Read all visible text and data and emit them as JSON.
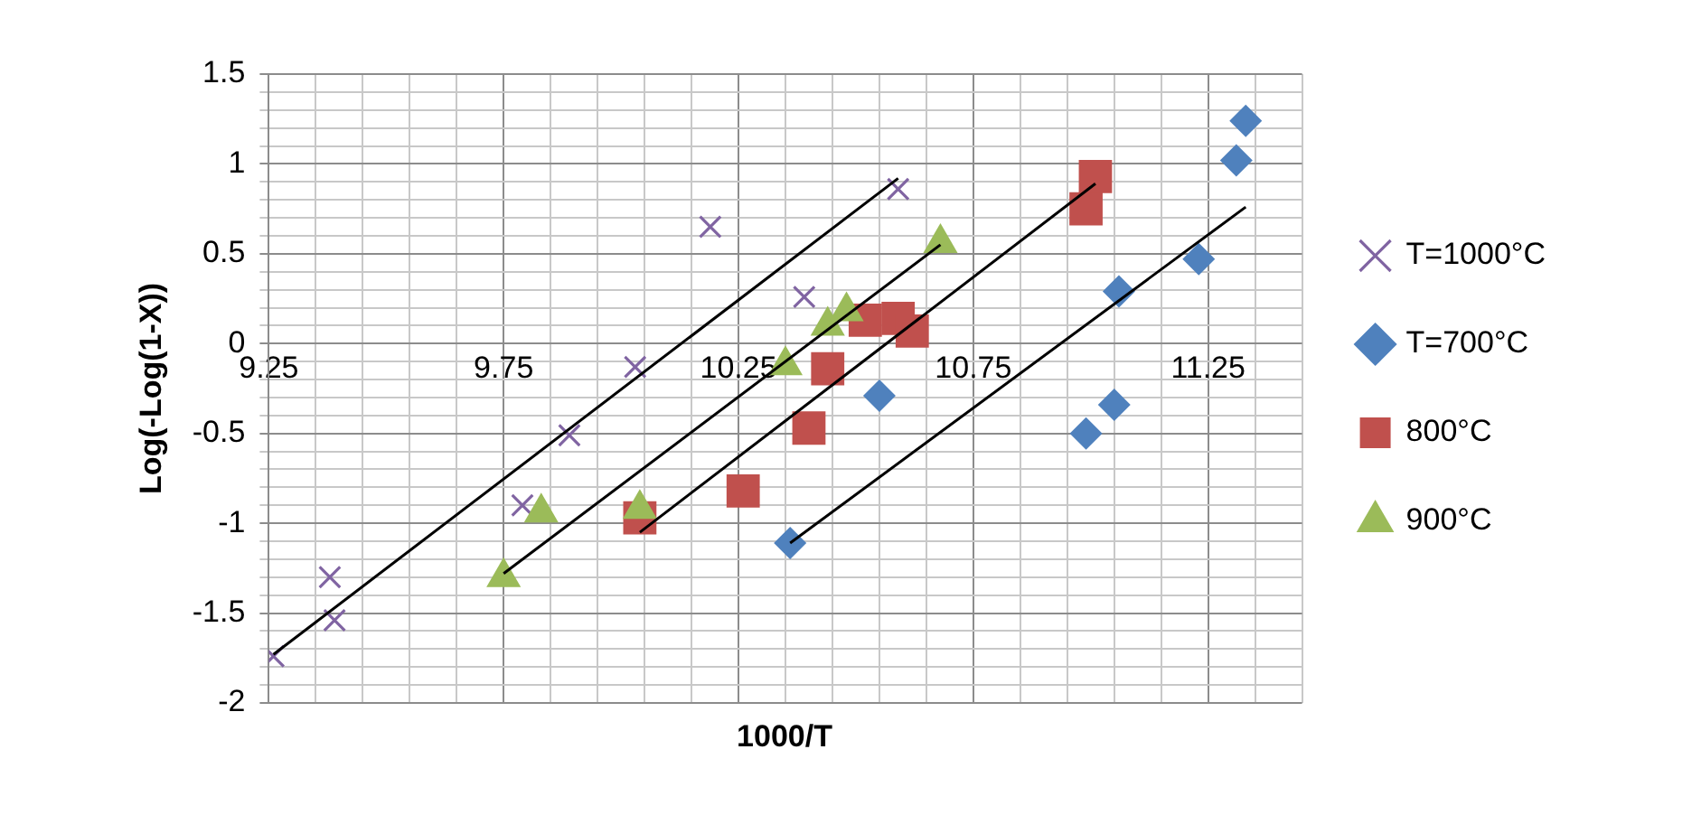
{
  "chart_data": {
    "type": "scatter",
    "xlabel": "1000/T",
    "ylabel": "Log(-Log(1-X))",
    "xlim": [
      9.25,
      11.45
    ],
    "ylim": [
      -2,
      1.5
    ],
    "xticks": [
      9.25,
      {
        "value": 9.35,
        "label": null
      },
      {
        "value": 9.45,
        "label": null
      },
      {
        "value": 9.55,
        "label": null
      },
      {
        "value": 9.65,
        "label": null
      },
      9.75,
      {
        "value": 9.85,
        "label": null
      },
      {
        "value": 9.95,
        "label": null
      },
      {
        "value": 10.05,
        "label": null
      },
      {
        "value": 10.15,
        "label": null
      },
      10.25,
      {
        "value": 10.35,
        "label": null
      },
      {
        "value": 10.45,
        "label": null
      },
      {
        "value": 10.55,
        "label": null
      },
      {
        "value": 10.65,
        "label": null
      },
      10.75,
      {
        "value": 10.85,
        "label": null
      },
      {
        "value": 10.95,
        "label": null
      },
      {
        "value": 11.05,
        "label": null
      },
      {
        "value": 11.15,
        "label": null
      },
      11.25,
      {
        "value": 11.35,
        "label": null
      },
      {
        "value": 11.45,
        "label": null
      }
    ],
    "yticks": [
      -2,
      {
        "value": -1.9,
        "label": null
      },
      {
        "value": -1.8,
        "label": null
      },
      {
        "value": -1.7,
        "label": null
      },
      {
        "value": -1.6,
        "label": null
      },
      -1.5,
      {
        "value": -1.4,
        "label": null
      },
      {
        "value": -1.3,
        "label": null
      },
      {
        "value": -1.2,
        "label": null
      },
      {
        "value": -1.1,
        "label": null
      },
      -1,
      {
        "value": -0.9,
        "label": null
      },
      {
        "value": -0.8,
        "label": null
      },
      {
        "value": -0.7,
        "label": null
      },
      {
        "value": -0.6,
        "label": null
      },
      -0.5,
      {
        "value": -0.4,
        "label": null
      },
      {
        "value": -0.3,
        "label": null
      },
      {
        "value": -0.2,
        "label": null
      },
      {
        "value": -0.1,
        "label": null
      },
      0,
      {
        "value": 0.1,
        "label": null
      },
      {
        "value": 0.2,
        "label": null
      },
      {
        "value": 0.3,
        "label": null
      },
      {
        "value": 0.4,
        "label": null
      },
      0.5,
      {
        "value": 0.6,
        "label": null
      },
      {
        "value": 0.7,
        "label": null
      },
      {
        "value": 0.8,
        "label": null
      },
      {
        "value": 0.9,
        "label": null
      },
      1,
      {
        "value": 1.1,
        "label": null
      },
      {
        "value": 1.2,
        "label": null
      },
      {
        "value": 1.3,
        "label": null
      },
      {
        "value": 1.4,
        "label": null
      },
      1.5
    ],
    "grid": true,
    "legend": "right",
    "series": [
      {
        "name": "T=1000°C",
        "color": "#8064a2",
        "marker": "cross",
        "x": [
          9.26,
          9.38,
          9.39,
          9.79,
          9.89,
          10.03,
          10.19,
          10.39,
          10.59
        ],
        "values": [
          -1.74,
          -1.3,
          -1.54,
          -0.9,
          -0.51,
          -0.13,
          0.65,
          0.26,
          0.86
        ]
      },
      {
        "name": "T=700°C",
        "color": "#4f81bd",
        "marker": "diamond",
        "x": [
          10.36,
          10.55,
          10.99,
          11.05,
          11.06,
          11.23,
          11.31,
          11.33
        ],
        "values": [
          -1.11,
          -0.29,
          -0.5,
          -0.34,
          0.29,
          0.47,
          1.02,
          1.24
        ]
      },
      {
        "name": "800°C",
        "color": "#c0504d",
        "marker": "square",
        "x": [
          10.04,
          10.26,
          10.4,
          10.44,
          10.52,
          10.59,
          10.62,
          10.99,
          11.01
        ],
        "values": [
          -0.97,
          -0.82,
          -0.47,
          -0.14,
          0.13,
          0.14,
          0.07,
          0.75,
          0.93
        ]
      },
      {
        "name": "900°C",
        "color": "#9bbb59",
        "marker": "triangle",
        "x": [
          9.75,
          9.83,
          10.04,
          10.35,
          10.44,
          10.48,
          10.68
        ],
        "values": [
          -1.3,
          -0.94,
          -0.92,
          -0.12,
          0.1,
          0.18,
          0.56
        ]
      },
      {
        "type": "line",
        "color": "#000000",
        "marker": "none",
        "x": [
          9.26,
          10.59
        ],
        "values": [
          -1.73,
          0.92
        ]
      },
      {
        "type": "line",
        "color": "#000000",
        "marker": "none",
        "x": [
          9.75,
          10.68
        ],
        "values": [
          -1.28,
          0.55
        ]
      },
      {
        "type": "line",
        "color": "#000000",
        "marker": "none",
        "x": [
          10.04,
          11.01
        ],
        "values": [
          -1.05,
          0.89
        ]
      },
      {
        "type": "line",
        "color": "#000000",
        "marker": "none",
        "x": [
          10.36,
          11.33
        ],
        "values": [
          -1.11,
          0.76
        ]
      }
    ]
  }
}
